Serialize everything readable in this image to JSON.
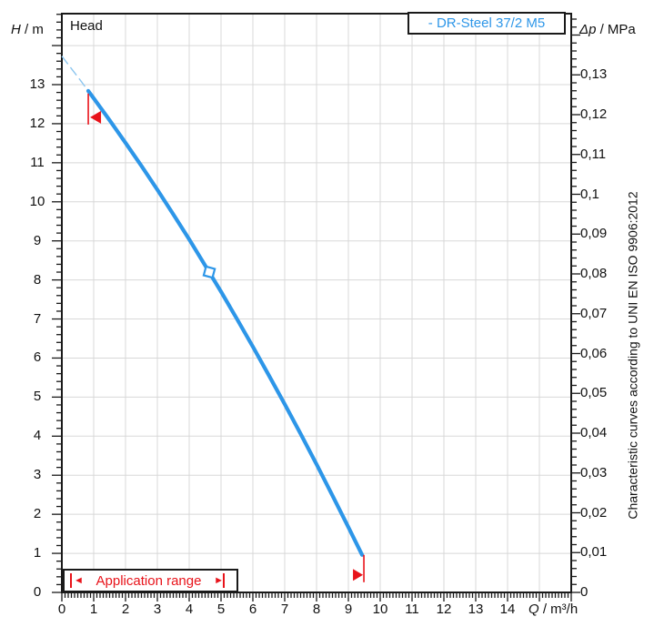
{
  "header": {
    "plot_label": "Head"
  },
  "legend": {
    "label": "- DR-Steel 37/2 M5"
  },
  "side_note": "Characteristic curves according to UNI EN ISO 9906:2012",
  "application_range": {
    "left_arrow": "◄",
    "label": "Application range",
    "right_arrow": "►"
  },
  "colors": {
    "curve": "#2d96e8",
    "curve_light": "#8cc6ef",
    "red": "#e8131a",
    "grid": "#d8d8d8",
    "axis": "#1a1a1a"
  },
  "axes": {
    "left": {
      "symbol": "H",
      "unit": " / m",
      "ticks": [
        {
          "h": 0,
          "label": "0"
        },
        {
          "h": 1,
          "label": "1"
        },
        {
          "h": 2,
          "label": "2"
        },
        {
          "h": 3,
          "label": "3"
        },
        {
          "h": 4,
          "label": "4"
        },
        {
          "h": 5,
          "label": "5"
        },
        {
          "h": 6,
          "label": "6"
        },
        {
          "h": 7,
          "label": "7"
        },
        {
          "h": 8,
          "label": "8"
        },
        {
          "h": 9,
          "label": "9"
        },
        {
          "h": 10,
          "label": "10"
        },
        {
          "h": 11,
          "label": "11"
        },
        {
          "h": 12,
          "label": "12"
        },
        {
          "h": 13,
          "label": "13"
        }
      ]
    },
    "right": {
      "symbol": "Δp",
      "unit": " / MPa",
      "ticks": [
        {
          "p": 0,
          "label": "0"
        },
        {
          "p": 0.01,
          "label": "0,01"
        },
        {
          "p": 0.02,
          "label": "0,02"
        },
        {
          "p": 0.03,
          "label": "0,03"
        },
        {
          "p": 0.04,
          "label": "0,04"
        },
        {
          "p": 0.05,
          "label": "0,05"
        },
        {
          "p": 0.06,
          "label": "0,06"
        },
        {
          "p": 0.07,
          "label": "0,07"
        },
        {
          "p": 0.08,
          "label": "0,08"
        },
        {
          "p": 0.09,
          "label": "0,09"
        },
        {
          "p": 0.1,
          "label": "0,1"
        },
        {
          "p": 0.11,
          "label": "0,11"
        },
        {
          "p": 0.12,
          "label": "0,12"
        },
        {
          "p": 0.13,
          "label": "0,13"
        }
      ]
    },
    "bottom": {
      "symbol": "Q",
      "unit": " / m³/h",
      "ticks": [
        {
          "q": 0,
          "label": "0"
        },
        {
          "q": 1,
          "label": "1"
        },
        {
          "q": 2,
          "label": "2"
        },
        {
          "q": 3,
          "label": "3"
        },
        {
          "q": 4,
          "label": "4"
        },
        {
          "q": 5,
          "label": "5"
        },
        {
          "q": 6,
          "label": "6"
        },
        {
          "q": 7,
          "label": "7"
        },
        {
          "q": 8,
          "label": "8"
        },
        {
          "q": 9,
          "label": "9"
        },
        {
          "q": 10,
          "label": "10"
        },
        {
          "q": 11,
          "label": "11"
        },
        {
          "q": 12,
          "label": "12"
        },
        {
          "q": 13,
          "label": "13"
        },
        {
          "q": 14,
          "label": "14"
        }
      ]
    }
  },
  "chart_data": {
    "type": "line",
    "title": "Head",
    "xlabel": "Q / m³/h",
    "ylabel": "H / m",
    "ylabel_right": "Δp / MPa",
    "xlim": [
      0,
      16
    ],
    "ylim": [
      0,
      14.8
    ],
    "ylim_right": [
      0,
      0.145
    ],
    "grid": true,
    "legend_position": "top-right",
    "series": [
      {
        "name": "DR-Steel 37/2 M5",
        "color": "#2d96e8",
        "points": [
          [
            0.83,
            12.84
          ],
          [
            1,
            12.65
          ],
          [
            1.5,
            12.09
          ],
          [
            2,
            11.51
          ],
          [
            2.5,
            10.92
          ],
          [
            3,
            10.31
          ],
          [
            3.5,
            9.68
          ],
          [
            4,
            9.04
          ],
          [
            4.5,
            8.37
          ],
          [
            5,
            7.7
          ],
          [
            5.5,
            7.0
          ],
          [
            6,
            6.29
          ],
          [
            6.5,
            5.56
          ],
          [
            7,
            4.82
          ],
          [
            7.5,
            4.06
          ],
          [
            8,
            3.28
          ],
          [
            8.5,
            2.48
          ],
          [
            9,
            1.67
          ],
          [
            9.43,
            0.96
          ]
        ],
        "extension_points": [
          [
            0,
            13.73
          ],
          [
            0.3,
            13.41
          ],
          [
            0.6,
            13.09
          ],
          [
            0.9,
            12.76
          ]
        ],
        "duty_point": [
          4.63,
          8.2
        ],
        "application_limits": {
          "min_flow": [
            0.83,
            12.84
          ],
          "max_flow": [
            9.43,
            0.96
          ]
        }
      }
    ]
  }
}
